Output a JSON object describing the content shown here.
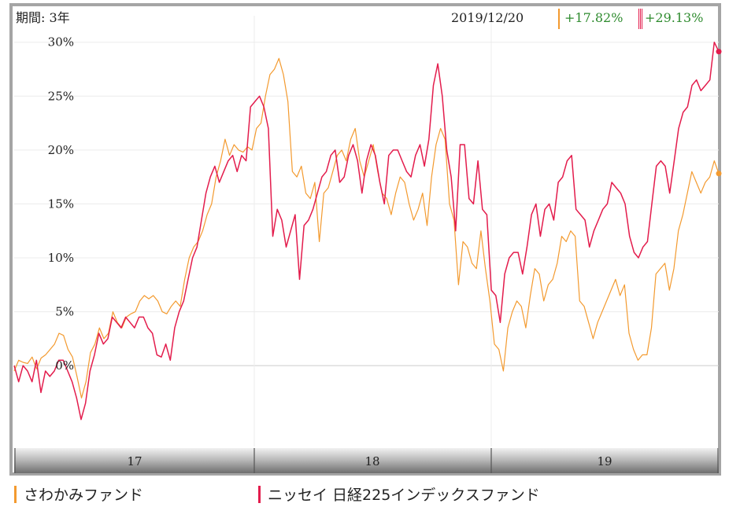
{
  "header": {
    "period_label": "期間: 3年",
    "date": "2019/12/20",
    "changes": [
      "+17.82%",
      "+29.13%"
    ]
  },
  "colors": {
    "series1": "#f39a2f",
    "series2": "#e31c4c",
    "gain_text": "#2e8b2e",
    "frame": "#a5a5a5"
  },
  "legend": [
    "さわかみファンド",
    "ニッセイ 日経225インデックスファンド"
  ],
  "chart_data": {
    "type": "line",
    "title": "",
    "xlabel": "",
    "ylabel": "",
    "x_tick_labels": [
      "17",
      "18",
      "19"
    ],
    "y_tick_labels": [
      "30%",
      "25%",
      "20%",
      "15%",
      "10%",
      "5%",
      "0%"
    ],
    "ylim": [
      -7.5,
      31
    ],
    "grid": true,
    "legend_placement": "bottom",
    "series": [
      {
        "name": "さわかみファンド",
        "values": [
          -0.5,
          0.5,
          0.3,
          0.2,
          0.8,
          -0.3,
          0.7,
          1.0,
          1.5,
          2.0,
          3.0,
          2.8,
          1.5,
          0.8,
          -1.0,
          -3.0,
          -1.5,
          1.2,
          2.0,
          3.5,
          2.5,
          3.0,
          5.0,
          4.0,
          3.5,
          4.5,
          4.8,
          5.0,
          6.0,
          6.5,
          6.2,
          6.5,
          6.0,
          5.0,
          4.8,
          5.5,
          6.0,
          5.5,
          8.0,
          10.0,
          11.0,
          11.5,
          12.5,
          14.0,
          15.0,
          17.5,
          19.0,
          21.0,
          19.5,
          20.5,
          20.0,
          19.8,
          20.3,
          20.0,
          22.0,
          22.5,
          25.0,
          27.0,
          27.5,
          28.5,
          27.0,
          24.5,
          18.0,
          17.5,
          18.5,
          16.0,
          15.5,
          17.0,
          11.5,
          16.0,
          16.5,
          18.0,
          19.5,
          20.0,
          19.0,
          21.0,
          22.0,
          19.0,
          17.5,
          19.0,
          20.5,
          18.0,
          16.0,
          15.5,
          14.0,
          16.0,
          17.5,
          17.0,
          15.0,
          13.5,
          14.5,
          16.0,
          13.0,
          17.5,
          20.5,
          22.0,
          21.0,
          15.0,
          13.5,
          7.5,
          11.5,
          11.0,
          9.5,
          9.0,
          12.5,
          9.0,
          6.0,
          2.0,
          1.5,
          -0.5,
          3.5,
          5.0,
          6.0,
          5.5,
          3.5,
          6.5,
          9.0,
          8.5,
          6.0,
          7.5,
          8.0,
          9.5,
          12.0,
          11.5,
          12.5,
          12.0,
          6.0,
          5.5,
          4.0,
          2.5,
          4.0,
          5.0,
          6.0,
          7.0,
          8.0,
          6.5,
          7.5,
          3.0,
          1.5,
          0.5,
          1.0,
          1.0,
          3.5,
          8.5,
          9.0,
          9.5,
          7.0,
          9.0,
          12.5,
          14.0,
          16.0,
          18.0,
          17.0,
          16.0,
          17.0,
          17.5,
          19.0,
          17.82
        ]
      },
      {
        "name": "ニッセイ 日経225インデックスファンド",
        "values": [
          0.0,
          -1.5,
          0.0,
          -0.5,
          -1.5,
          0.5,
          -2.5,
          -0.5,
          -1.0,
          -0.5,
          0.5,
          0.5,
          -0.5,
          -1.5,
          -3.0,
          -5.0,
          -3.5,
          -0.5,
          1.0,
          3.0,
          2.0,
          2.5,
          4.5,
          4.0,
          3.5,
          4.5,
          4.0,
          3.5,
          4.5,
          4.5,
          3.5,
          3.0,
          1.0,
          0.8,
          2.0,
          0.5,
          3.5,
          5.0,
          6.0,
          8.0,
          10.0,
          11.0,
          13.5,
          16.0,
          17.5,
          18.5,
          17.0,
          18.0,
          19.0,
          19.5,
          18.0,
          19.5,
          19.0,
          24.0,
          24.5,
          25.0,
          24.0,
          22.0,
          12.0,
          14.5,
          13.5,
          11.0,
          12.5,
          14.0,
          8.0,
          13.0,
          13.5,
          14.5,
          16.0,
          17.5,
          18.0,
          19.5,
          20.0,
          17.0,
          17.5,
          19.5,
          20.5,
          19.0,
          16.0,
          19.0,
          20.5,
          19.5,
          17.0,
          15.0,
          19.5,
          20.0,
          20.0,
          19.0,
          18.0,
          17.5,
          19.5,
          20.5,
          18.5,
          21.0,
          26.0,
          28.0,
          25.0,
          20.0,
          17.5,
          12.5,
          20.5,
          20.5,
          15.5,
          15.0,
          19.0,
          14.5,
          14.0,
          7.0,
          6.5,
          4.0,
          8.5,
          10.0,
          10.5,
          10.5,
          8.5,
          11.0,
          14.0,
          15.0,
          12.0,
          14.5,
          15.0,
          13.5,
          17.0,
          17.5,
          19.0,
          19.5,
          14.5,
          14.0,
          13.5,
          11.0,
          12.5,
          13.5,
          14.5,
          15.0,
          17.0,
          16.5,
          16.0,
          15.0,
          12.0,
          10.5,
          10.0,
          11.0,
          11.5,
          15.0,
          18.5,
          19.0,
          18.5,
          16.0,
          19.0,
          22.0,
          23.5,
          24.0,
          26.0,
          26.5,
          25.5,
          26.0,
          26.5,
          30.0,
          29.13
        ]
      }
    ]
  }
}
